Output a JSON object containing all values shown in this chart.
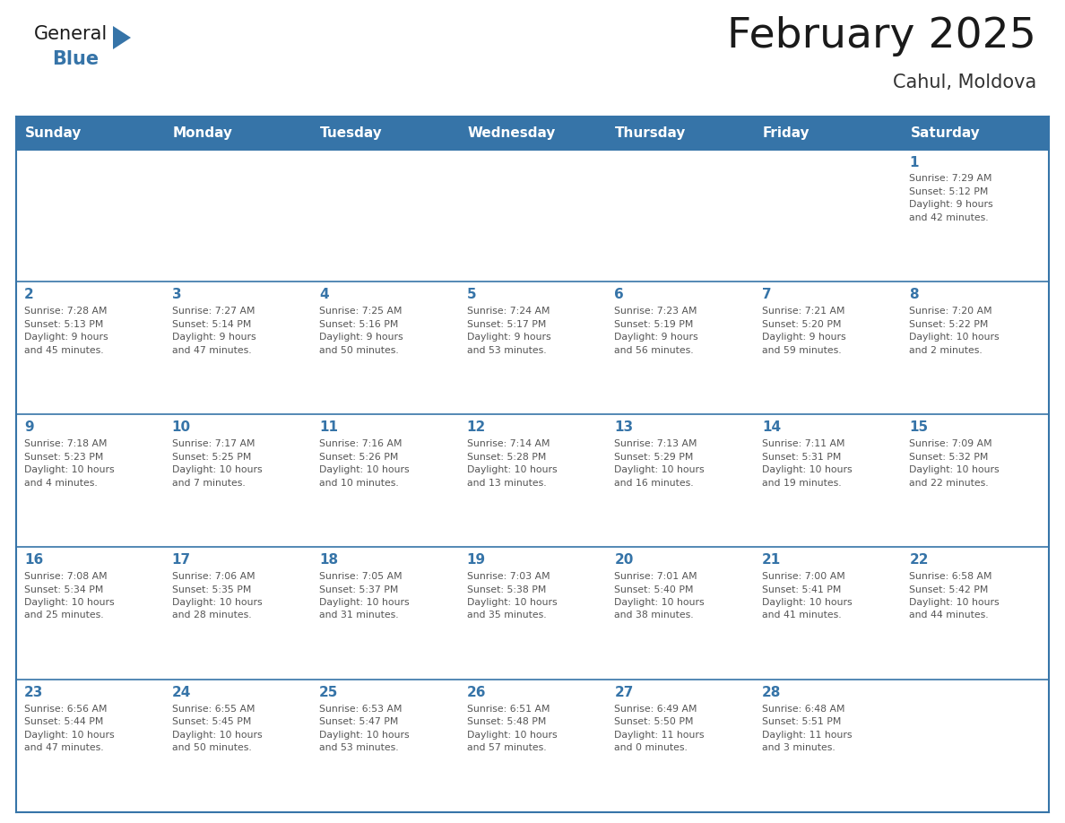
{
  "title": "February 2025",
  "subtitle": "Cahul, Moldova",
  "header_bg_color": "#3674A8",
  "header_text_color": "#FFFFFF",
  "border_color": "#3674A8",
  "day_number_color": "#3674A8",
  "text_color": "#555555",
  "title_color": "#1a1a1a",
  "subtitle_color": "#333333",
  "days_of_week": [
    "Sunday",
    "Monday",
    "Tuesday",
    "Wednesday",
    "Thursday",
    "Friday",
    "Saturday"
  ],
  "weeks": [
    [
      {
        "day": "",
        "info": ""
      },
      {
        "day": "",
        "info": ""
      },
      {
        "day": "",
        "info": ""
      },
      {
        "day": "",
        "info": ""
      },
      {
        "day": "",
        "info": ""
      },
      {
        "day": "",
        "info": ""
      },
      {
        "day": "1",
        "info": "Sunrise: 7:29 AM\nSunset: 5:12 PM\nDaylight: 9 hours\nand 42 minutes."
      }
    ],
    [
      {
        "day": "2",
        "info": "Sunrise: 7:28 AM\nSunset: 5:13 PM\nDaylight: 9 hours\nand 45 minutes."
      },
      {
        "day": "3",
        "info": "Sunrise: 7:27 AM\nSunset: 5:14 PM\nDaylight: 9 hours\nand 47 minutes."
      },
      {
        "day": "4",
        "info": "Sunrise: 7:25 AM\nSunset: 5:16 PM\nDaylight: 9 hours\nand 50 minutes."
      },
      {
        "day": "5",
        "info": "Sunrise: 7:24 AM\nSunset: 5:17 PM\nDaylight: 9 hours\nand 53 minutes."
      },
      {
        "day": "6",
        "info": "Sunrise: 7:23 AM\nSunset: 5:19 PM\nDaylight: 9 hours\nand 56 minutes."
      },
      {
        "day": "7",
        "info": "Sunrise: 7:21 AM\nSunset: 5:20 PM\nDaylight: 9 hours\nand 59 minutes."
      },
      {
        "day": "8",
        "info": "Sunrise: 7:20 AM\nSunset: 5:22 PM\nDaylight: 10 hours\nand 2 minutes."
      }
    ],
    [
      {
        "day": "9",
        "info": "Sunrise: 7:18 AM\nSunset: 5:23 PM\nDaylight: 10 hours\nand 4 minutes."
      },
      {
        "day": "10",
        "info": "Sunrise: 7:17 AM\nSunset: 5:25 PM\nDaylight: 10 hours\nand 7 minutes."
      },
      {
        "day": "11",
        "info": "Sunrise: 7:16 AM\nSunset: 5:26 PM\nDaylight: 10 hours\nand 10 minutes."
      },
      {
        "day": "12",
        "info": "Sunrise: 7:14 AM\nSunset: 5:28 PM\nDaylight: 10 hours\nand 13 minutes."
      },
      {
        "day": "13",
        "info": "Sunrise: 7:13 AM\nSunset: 5:29 PM\nDaylight: 10 hours\nand 16 minutes."
      },
      {
        "day": "14",
        "info": "Sunrise: 7:11 AM\nSunset: 5:31 PM\nDaylight: 10 hours\nand 19 minutes."
      },
      {
        "day": "15",
        "info": "Sunrise: 7:09 AM\nSunset: 5:32 PM\nDaylight: 10 hours\nand 22 minutes."
      }
    ],
    [
      {
        "day": "16",
        "info": "Sunrise: 7:08 AM\nSunset: 5:34 PM\nDaylight: 10 hours\nand 25 minutes."
      },
      {
        "day": "17",
        "info": "Sunrise: 7:06 AM\nSunset: 5:35 PM\nDaylight: 10 hours\nand 28 minutes."
      },
      {
        "day": "18",
        "info": "Sunrise: 7:05 AM\nSunset: 5:37 PM\nDaylight: 10 hours\nand 31 minutes."
      },
      {
        "day": "19",
        "info": "Sunrise: 7:03 AM\nSunset: 5:38 PM\nDaylight: 10 hours\nand 35 minutes."
      },
      {
        "day": "20",
        "info": "Sunrise: 7:01 AM\nSunset: 5:40 PM\nDaylight: 10 hours\nand 38 minutes."
      },
      {
        "day": "21",
        "info": "Sunrise: 7:00 AM\nSunset: 5:41 PM\nDaylight: 10 hours\nand 41 minutes."
      },
      {
        "day": "22",
        "info": "Sunrise: 6:58 AM\nSunset: 5:42 PM\nDaylight: 10 hours\nand 44 minutes."
      }
    ],
    [
      {
        "day": "23",
        "info": "Sunrise: 6:56 AM\nSunset: 5:44 PM\nDaylight: 10 hours\nand 47 minutes."
      },
      {
        "day": "24",
        "info": "Sunrise: 6:55 AM\nSunset: 5:45 PM\nDaylight: 10 hours\nand 50 minutes."
      },
      {
        "day": "25",
        "info": "Sunrise: 6:53 AM\nSunset: 5:47 PM\nDaylight: 10 hours\nand 53 minutes."
      },
      {
        "day": "26",
        "info": "Sunrise: 6:51 AM\nSunset: 5:48 PM\nDaylight: 10 hours\nand 57 minutes."
      },
      {
        "day": "27",
        "info": "Sunrise: 6:49 AM\nSunset: 5:50 PM\nDaylight: 11 hours\nand 0 minutes."
      },
      {
        "day": "28",
        "info": "Sunrise: 6:48 AM\nSunset: 5:51 PM\nDaylight: 11 hours\nand 3 minutes."
      },
      {
        "day": "",
        "info": ""
      }
    ]
  ],
  "logo_general_color": "#1a1a1a",
  "logo_blue_color": "#3674A8",
  "logo_triangle_color": "#3674A8"
}
